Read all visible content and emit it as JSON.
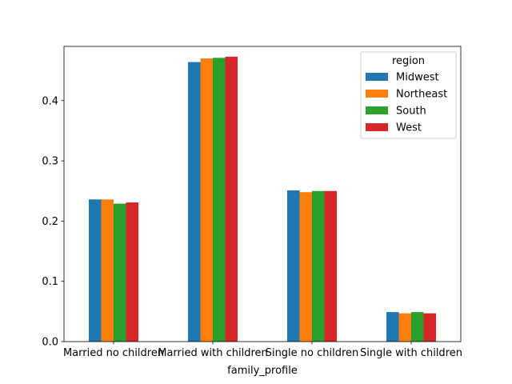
{
  "chart_data": {
    "type": "bar",
    "categories": [
      "Married no children",
      "Married with children",
      "Single no children",
      "Single with children"
    ],
    "series": [
      {
        "name": "Midwest",
        "color": "#1f77b4",
        "values": [
          0.236,
          0.464,
          0.251,
          0.049
        ]
      },
      {
        "name": "Northeast",
        "color": "#ff7f0e",
        "values": [
          0.236,
          0.47,
          0.248,
          0.047
        ]
      },
      {
        "name": "South",
        "color": "#2ca02c",
        "values": [
          0.229,
          0.471,
          0.25,
          0.049
        ]
      },
      {
        "name": "West",
        "color": "#d62728",
        "values": [
          0.231,
          0.473,
          0.25,
          0.047
        ]
      }
    ],
    "title": "",
    "xlabel": "family_profile",
    "ylabel": "",
    "ylim": [
      0,
      0.49
    ],
    "yticks": [
      0.0,
      0.1,
      0.2,
      0.3,
      0.4
    ],
    "ytick_labels": [
      "0.0",
      "0.1",
      "0.2",
      "0.3",
      "0.4"
    ],
    "legend": {
      "title": "region",
      "placement": "upper-right"
    },
    "grid": false
  }
}
